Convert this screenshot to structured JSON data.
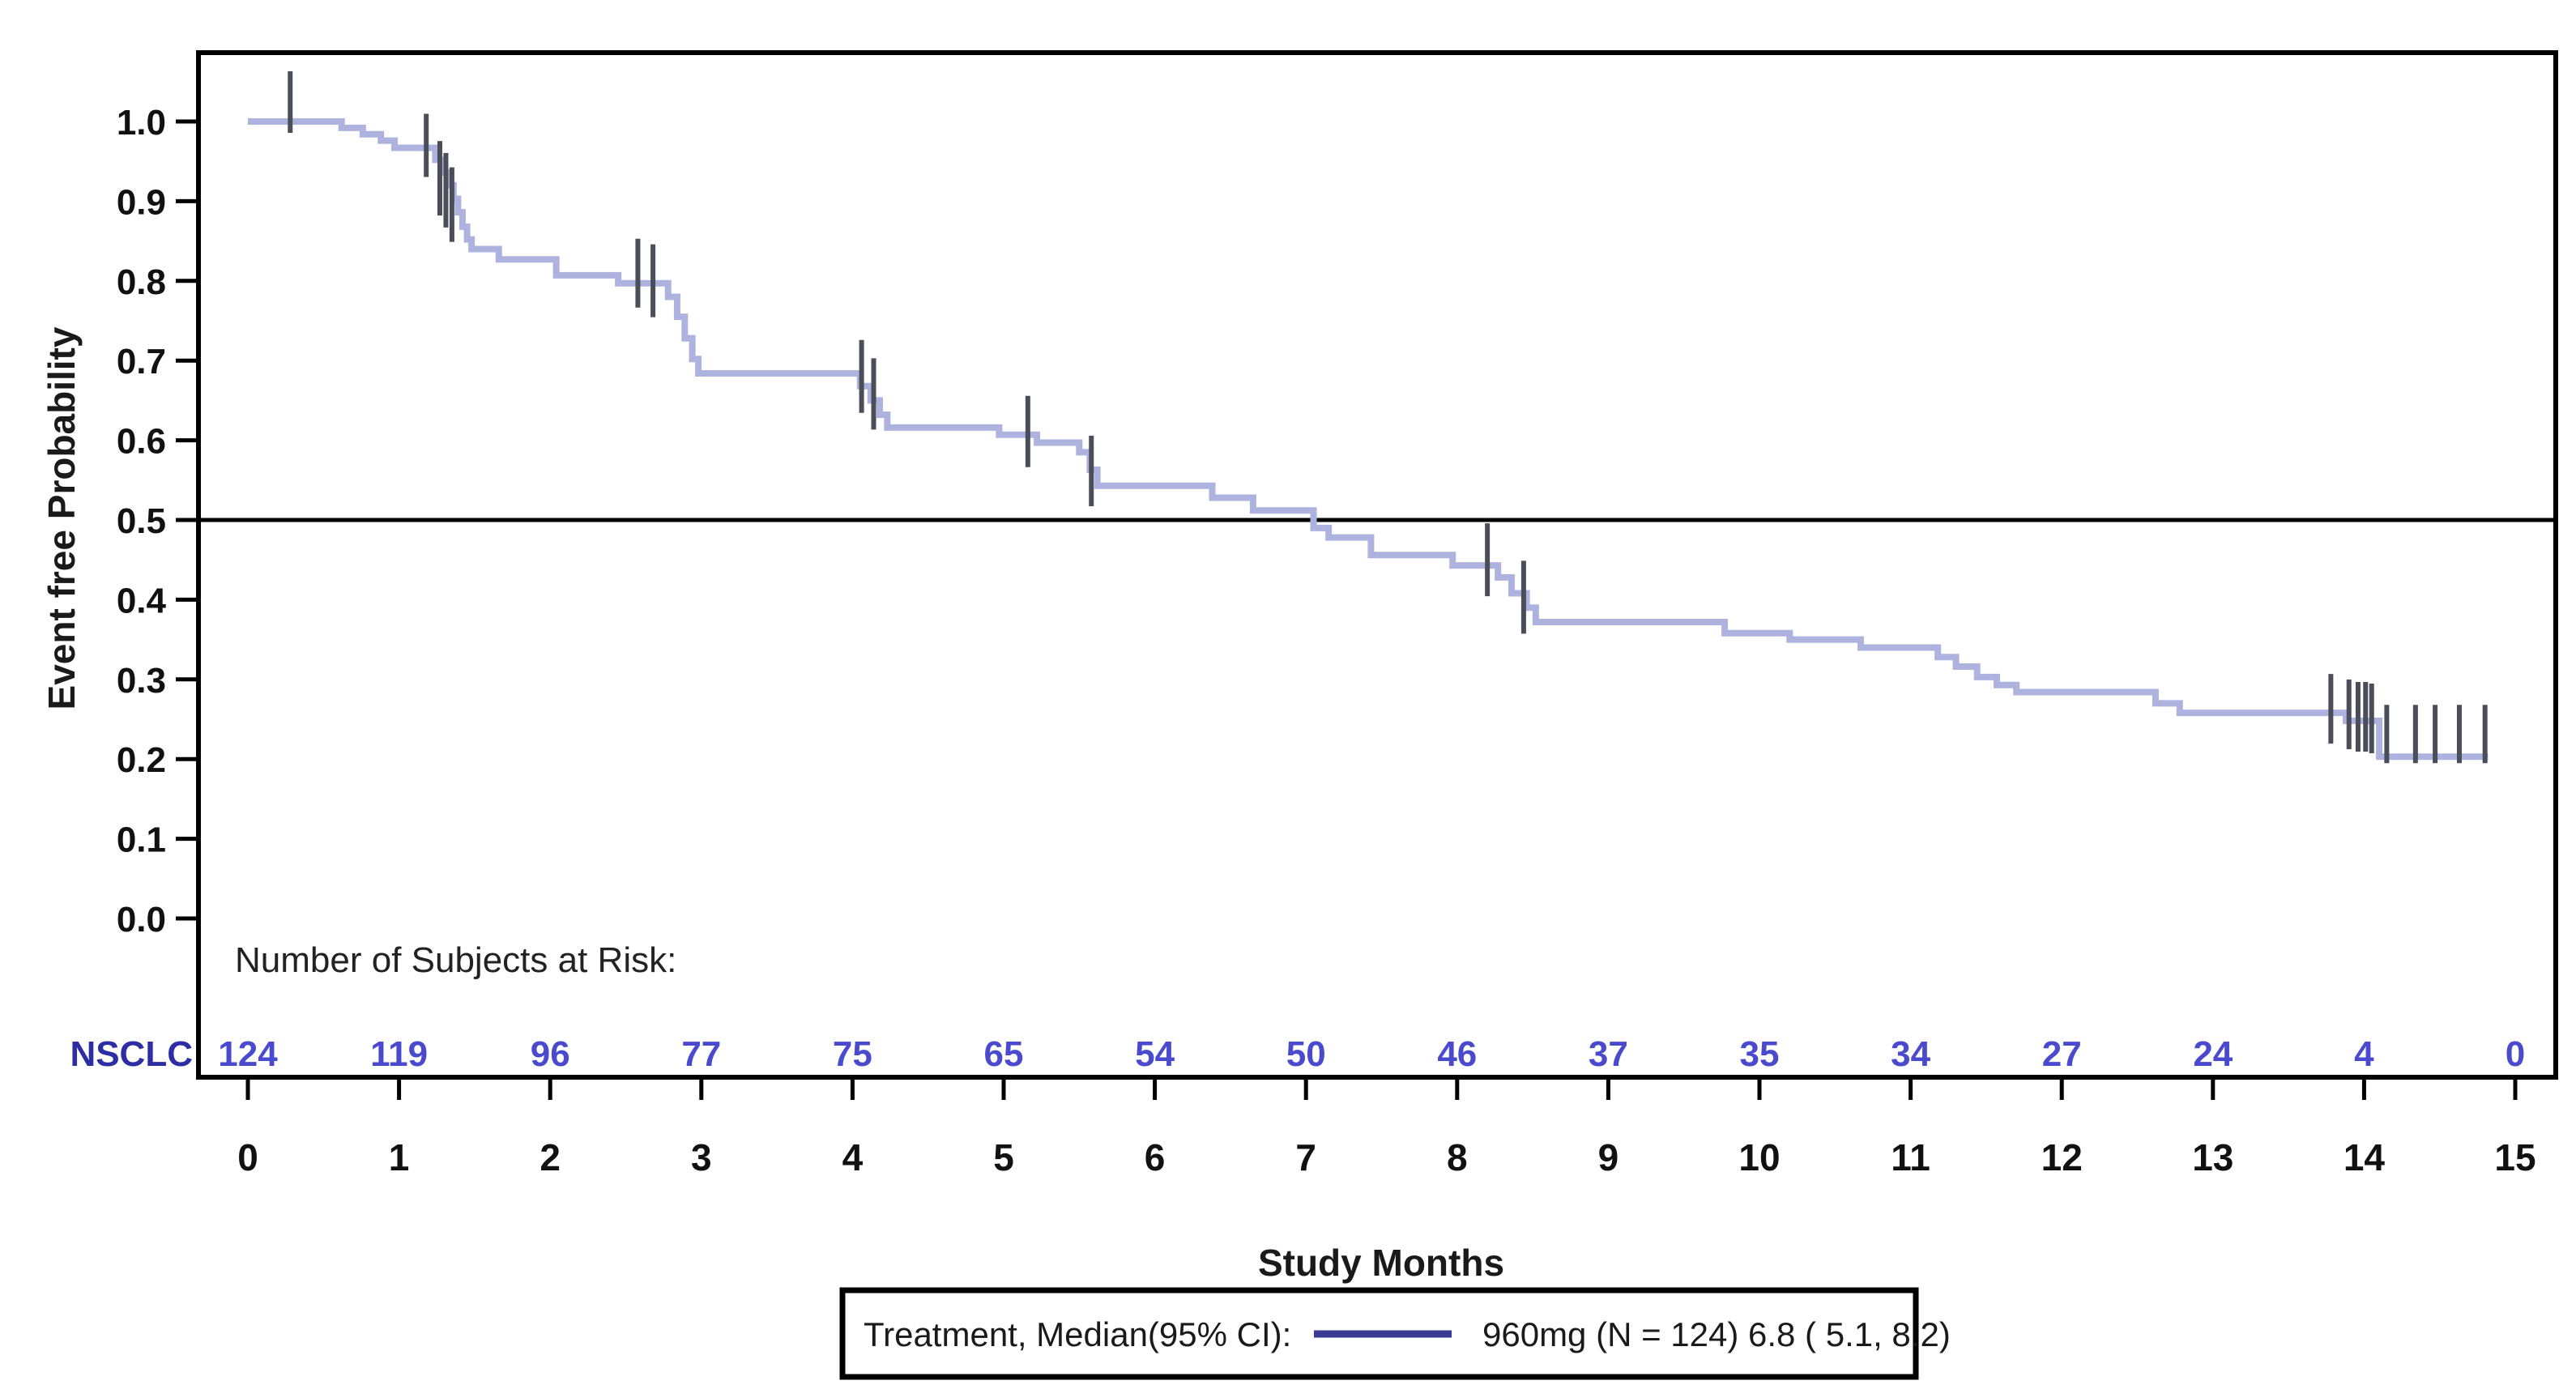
{
  "figure": {
    "y_axis_title": "Event free Probability",
    "x_axis_title": "Study Months",
    "risk_header": "Number of Subjects at Risk:",
    "group_label": "NSCLC",
    "legend": {
      "prefix": "Treatment, Median(95% CI):",
      "entry": "960mg (N = 124) 6.8 ( 5.1, 8.2)"
    },
    "colors": {
      "curve": "#aeb2df",
      "censor": "#4b4e58",
      "legend_line": "#3b3b96",
      "risk_numbers": "#4a4ace",
      "group_label": "#2d2da6",
      "axis": "#000000",
      "reference_line": "#000000"
    }
  },
  "chart_data": {
    "type": "line",
    "subtype": "kaplan-meier-step",
    "title": "",
    "xlabel": "Study Months",
    "ylabel": "Event free Probability",
    "xlim": [
      0,
      15
    ],
    "ylim": [
      0.0,
      1.05
    ],
    "x_ticks": [
      "0",
      "1",
      "2",
      "3",
      "4",
      "5",
      "6",
      "7",
      "8",
      "9",
      "10",
      "11",
      "12",
      "13",
      "14",
      "15"
    ],
    "y_ticks": [
      "1.0",
      "0.9",
      "0.8",
      "0.7",
      "0.6",
      "0.5",
      "0.4",
      "0.3",
      "0.2",
      "0.1",
      "0.0"
    ],
    "reference_line_y": 0.5,
    "grid": false,
    "legend_position": "bottom",
    "series": [
      {
        "name": "960mg (N = 124)",
        "median": 6.8,
        "ci95_low": 5.1,
        "ci95_high": 8.2,
        "end_month": 14.82,
        "steps": [
          [
            0.0,
            1.0
          ],
          [
            0.62,
            0.992
          ],
          [
            0.76,
            0.984
          ],
          [
            0.88,
            0.976
          ],
          [
            0.97,
            0.967
          ],
          [
            1.24,
            0.952
          ],
          [
            1.28,
            0.936
          ],
          [
            1.32,
            0.92
          ],
          [
            1.36,
            0.903
          ],
          [
            1.39,
            0.886
          ],
          [
            1.42,
            0.868
          ],
          [
            1.45,
            0.852
          ],
          [
            1.48,
            0.84
          ],
          [
            1.66,
            0.827
          ],
          [
            2.04,
            0.807
          ],
          [
            2.45,
            0.797
          ],
          [
            2.78,
            0.78
          ],
          [
            2.84,
            0.755
          ],
          [
            2.89,
            0.728
          ],
          [
            2.94,
            0.702
          ],
          [
            2.98,
            0.684
          ],
          [
            4.05,
            0.668
          ],
          [
            4.12,
            0.65
          ],
          [
            4.18,
            0.632
          ],
          [
            4.23,
            0.616
          ],
          [
            4.97,
            0.607
          ],
          [
            5.22,
            0.597
          ],
          [
            5.5,
            0.585
          ],
          [
            5.57,
            0.563
          ],
          [
            5.62,
            0.543
          ],
          [
            6.38,
            0.528
          ],
          [
            6.65,
            0.512
          ],
          [
            7.05,
            0.49
          ],
          [
            7.15,
            0.478
          ],
          [
            7.43,
            0.456
          ],
          [
            7.97,
            0.443
          ],
          [
            8.27,
            0.428
          ],
          [
            8.36,
            0.408
          ],
          [
            8.46,
            0.39
          ],
          [
            8.52,
            0.372
          ],
          [
            9.77,
            0.358
          ],
          [
            10.2,
            0.35
          ],
          [
            10.67,
            0.34
          ],
          [
            11.18,
            0.328
          ],
          [
            11.3,
            0.316
          ],
          [
            11.44,
            0.303
          ],
          [
            11.57,
            0.293
          ],
          [
            11.7,
            0.284
          ],
          [
            12.62,
            0.27
          ],
          [
            12.78,
            0.258
          ],
          [
            13.88,
            0.248
          ],
          [
            14.1,
            0.203
          ]
        ],
        "censors": [
          [
            0.28,
            1.0,
            62,
            14
          ],
          [
            1.18,
            0.967,
            42,
            36
          ],
          [
            1.27,
            0.945,
            30,
            62
          ],
          [
            1.31,
            0.93,
            30,
            62
          ],
          [
            1.35,
            0.912,
            30,
            62
          ],
          [
            2.58,
            0.797,
            55,
            30
          ],
          [
            2.68,
            0.79,
            55,
            35
          ],
          [
            4.06,
            0.67,
            55,
            35
          ],
          [
            4.14,
            0.652,
            50,
            38
          ],
          [
            5.16,
            0.607,
            48,
            40
          ],
          [
            5.58,
            0.56,
            45,
            42
          ],
          [
            8.2,
            0.443,
            52,
            38
          ],
          [
            8.44,
            0.398,
            50,
            40
          ],
          [
            13.78,
            0.258,
            48,
            38
          ],
          [
            13.9,
            0.253,
            46,
            40
          ],
          [
            13.96,
            0.25,
            46,
            40
          ],
          [
            14.01,
            0.25,
            46,
            40
          ],
          [
            14.05,
            0.248,
            46,
            40
          ],
          [
            14.15,
            0.203,
            64,
            8
          ],
          [
            14.34,
            0.203,
            64,
            8
          ],
          [
            14.47,
            0.203,
            64,
            8
          ],
          [
            14.63,
            0.203,
            64,
            8
          ],
          [
            14.8,
            0.203,
            64,
            8
          ]
        ]
      }
    ],
    "at_risk": {
      "header": "Number of Subjects at Risk:",
      "group": "NSCLC",
      "months": [
        0,
        1,
        2,
        3,
        4,
        5,
        6,
        7,
        8,
        9,
        10,
        11,
        12,
        13,
        14,
        15
      ],
      "counts": [
        "124",
        "119",
        "96",
        "77",
        "75",
        "65",
        "54",
        "50",
        "46",
        "37",
        "35",
        "34",
        "27",
        "24",
        "4",
        "0"
      ]
    }
  }
}
